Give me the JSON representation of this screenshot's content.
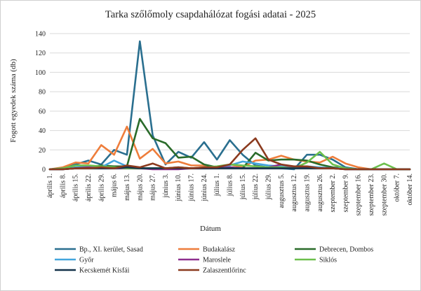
{
  "chart_data": {
    "type": "line",
    "title": "Tarka szőlőmoly csapdahálózat fogási adatai - 2025",
    "xlabel": "Dátum",
    "ylabel": "Fogott egyedek száma (db)",
    "ylim": [
      0,
      140
    ],
    "yticks": [
      0,
      20,
      40,
      60,
      80,
      100,
      120,
      140
    ],
    "grid": true,
    "legend_position": "bottom",
    "x": [
      "április 1.",
      "április 8.",
      "április 15.",
      "április 22.",
      "április 29.",
      "május 6.",
      "május 13.",
      "május 20.",
      "május 27.",
      "június 3.",
      "június 10.",
      "június 17.",
      "június 24.",
      "július 1.",
      "július 8.",
      "július 15.",
      "július 22.",
      "július 29.",
      "augusztus 5.",
      "augusztus 12.",
      "augusztus 19.",
      "augusztus 26.",
      "szeptember 2.",
      "szeptember 9.",
      "szeptember 16.",
      "szeptember 23.",
      "szeptember 30.",
      "október 7.",
      "október 14."
    ],
    "series": [
      {
        "name": "Bp., XI. kerület, Sasad",
        "color": "#2a6f8f",
        "values": [
          0,
          1,
          5,
          9,
          5,
          20,
          15,
          132,
          35,
          5,
          18,
          12,
          28,
          10,
          30,
          15,
          4,
          2,
          1,
          0,
          15,
          15,
          10,
          2,
          0,
          0,
          0,
          0,
          0
        ]
      },
      {
        "name": "Budakalász",
        "color": "#ee7d3b",
        "values": [
          0,
          2,
          7,
          6,
          25,
          15,
          44,
          11,
          21,
          6,
          8,
          4,
          4,
          2,
          5,
          2,
          9,
          10,
          14,
          10,
          8,
          7,
          13,
          6,
          2,
          0,
          0,
          0,
          0
        ]
      },
      {
        "name": "Debrecen, Dombos",
        "color": "#2a6b2a",
        "values": [
          0,
          0,
          1,
          2,
          4,
          3,
          3,
          52,
          32,
          27,
          12,
          13,
          5,
          2,
          2,
          1,
          17,
          9,
          10,
          10,
          9,
          5,
          2,
          1,
          0,
          0,
          0,
          0,
          0
        ]
      },
      {
        "name": "Győr",
        "color": "#44a6dd",
        "values": [
          0,
          1,
          2,
          3,
          2,
          9,
          3,
          1,
          1,
          1,
          2,
          1,
          1,
          2,
          4,
          8,
          6,
          4,
          3,
          1,
          3,
          2,
          1,
          1,
          0,
          0,
          0,
          0,
          0
        ]
      },
      {
        "name": "Maroslele",
        "color": "#8e2f8e",
        "values": [
          0,
          0,
          1,
          2,
          1,
          1,
          1,
          1,
          0,
          0,
          0,
          1,
          1,
          1,
          2,
          1,
          1,
          2,
          5,
          2,
          2,
          1,
          1,
          0,
          0,
          0,
          0,
          0,
          0
        ]
      },
      {
        "name": "Siklós",
        "color": "#6cbf4c",
        "values": [
          0,
          1,
          4,
          4,
          3,
          2,
          1,
          1,
          1,
          1,
          2,
          1,
          2,
          3,
          5,
          4,
          3,
          2,
          2,
          1,
          7,
          18,
          5,
          1,
          0,
          0,
          6,
          0,
          0
        ]
      },
      {
        "name": "Kecskemét Kisfái",
        "color": "#13324a",
        "values": [
          0,
          0,
          1,
          1,
          1,
          1,
          2,
          1,
          1,
          1,
          1,
          1,
          1,
          1,
          1,
          1,
          1,
          1,
          1,
          1,
          1,
          1,
          1,
          0,
          0,
          0,
          0,
          0,
          0
        ]
      },
      {
        "name": "Zalaszentlőrinc",
        "color": "#8b3a1e",
        "values": [
          0,
          0,
          1,
          1,
          2,
          1,
          4,
          2,
          6,
          1,
          2,
          1,
          2,
          2,
          5,
          20,
          32,
          10,
          5,
          3,
          3,
          1,
          1,
          0,
          0,
          0,
          0,
          0,
          0
        ]
      }
    ]
  }
}
